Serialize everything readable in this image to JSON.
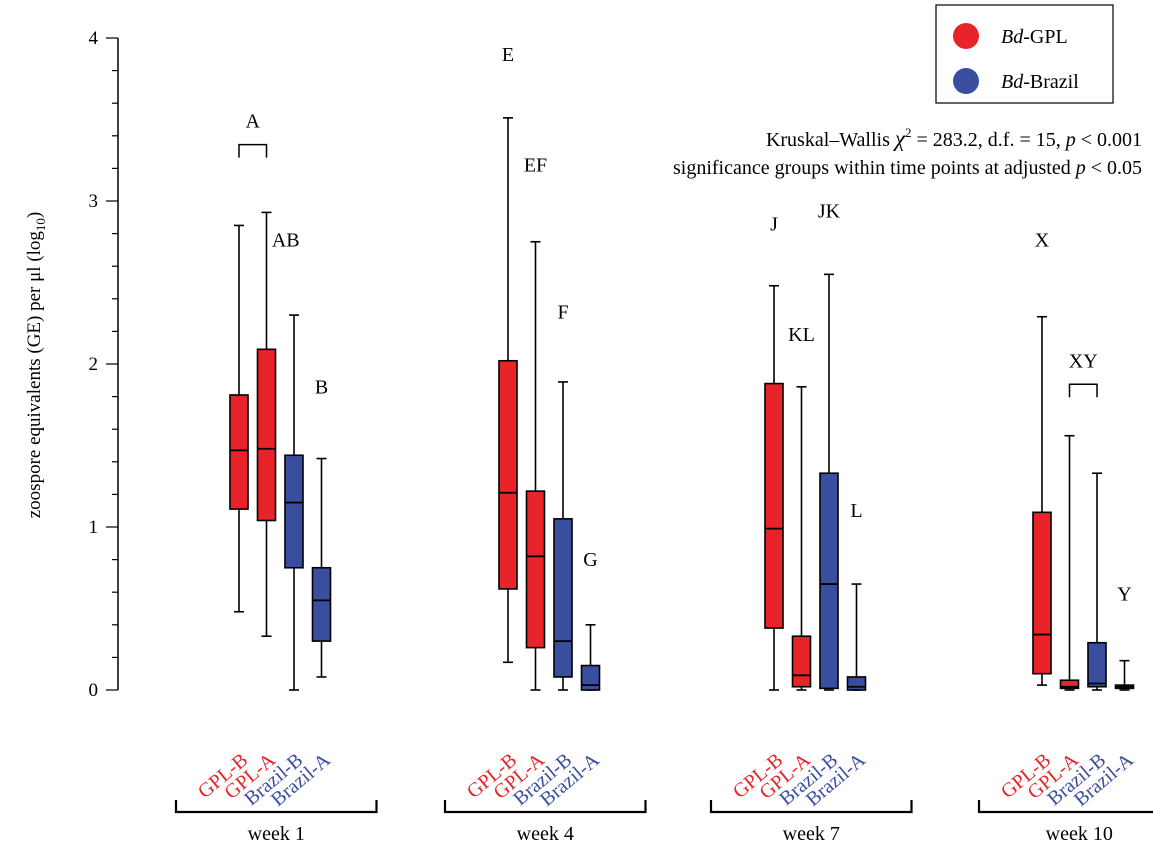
{
  "chart_data": {
    "type": "box",
    "ylabel": "zoospore equivalents (GE) per μl (log",
    "ylabel_subscript": "10",
    "ylabel_close": ")",
    "ylim": [
      0,
      4
    ],
    "yticks": [
      0,
      1,
      2,
      3,
      4
    ],
    "colors": {
      "Bd-GPL": "#e8242a",
      "Bd-Brazil": "#3a4ea0"
    },
    "legend": {
      "position": "top-right",
      "entries": [
        {
          "italic": "Bd",
          "text": "-GPL",
          "lineage": "Bd-GPL"
        },
        {
          "italic": "Bd",
          "text": "-Brazil",
          "lineage": "Bd-Brazil"
        }
      ]
    },
    "annotation": {
      "line1": {
        "pre": "Kruskal–Wallis ",
        "chi": "χ",
        "sup": "2",
        "mid": " = 283.2, d.f. = 15, ",
        "p": "p",
        "post": " < 0.001"
      },
      "line2": {
        "pre": "significance groups within time points at adjusted ",
        "p": "p",
        "post": " < 0.05"
      }
    },
    "groups": [
      {
        "label": "week 1",
        "boxes": [
          {
            "name": "GPL-B",
            "lineage": "Bd-GPL",
            "min": 0.48,
            "q1": 1.11,
            "median": 1.47,
            "q3": 1.81,
            "max": 2.85
          },
          {
            "name": "GPL-A",
            "lineage": "Bd-GPL",
            "min": 0.33,
            "q1": 1.04,
            "median": 1.48,
            "q3": 2.09,
            "max": 2.93
          },
          {
            "name": "Brazil-B",
            "lineage": "Bd-Brazil",
            "min": 0.0,
            "q1": 0.75,
            "median": 1.15,
            "q3": 1.44,
            "max": 2.3
          },
          {
            "name": "Brazil-A",
            "lineage": "Bd-Brazil",
            "min": 0.08,
            "q1": 0.3,
            "median": 0.55,
            "q3": 0.75,
            "max": 1.42
          }
        ],
        "letters": [
          {
            "text": "A",
            "box": 0.5,
            "y": 3.45,
            "bracket": true
          },
          {
            "text": "AB",
            "box": 1.7,
            "y": 2.72
          },
          {
            "text": "B",
            "box": 3.0,
            "y": 1.82
          }
        ]
      },
      {
        "label": "week 4",
        "boxes": [
          {
            "name": "GPL-B",
            "lineage": "Bd-GPL",
            "min": 0.17,
            "q1": 0.62,
            "median": 1.21,
            "q3": 2.02,
            "max": 3.51
          },
          {
            "name": "GPL-A",
            "lineage": "Bd-GPL",
            "min": 0.0,
            "q1": 0.26,
            "median": 0.82,
            "q3": 1.22,
            "max": 2.75
          },
          {
            "name": "Brazil-B",
            "lineage": "Bd-Brazil",
            "min": 0.0,
            "q1": 0.08,
            "median": 0.3,
            "q3": 1.05,
            "max": 1.89
          },
          {
            "name": "Brazil-A",
            "lineage": "Bd-Brazil",
            "min": 0.0,
            "q1": 0.0,
            "median": 0.03,
            "q3": 0.15,
            "max": 0.4
          }
        ],
        "letters": [
          {
            "text": "E",
            "box": 0.0,
            "y": 3.86
          },
          {
            "text": "EF",
            "box": 1.0,
            "y": 3.18
          },
          {
            "text": "F",
            "box": 2.0,
            "y": 2.28
          },
          {
            "text": "G",
            "box": 3.0,
            "y": 0.76
          }
        ]
      },
      {
        "label": "week 7",
        "boxes": [
          {
            "name": "GPL-B",
            "lineage": "Bd-GPL",
            "min": 0.0,
            "q1": 0.38,
            "median": 0.99,
            "q3": 1.88,
            "max": 2.48
          },
          {
            "name": "GPL-A",
            "lineage": "Bd-GPL",
            "min": 0.0,
            "q1": 0.02,
            "median": 0.09,
            "q3": 0.33,
            "max": 1.86
          },
          {
            "name": "Brazil-B",
            "lineage": "Bd-Brazil",
            "min": 0.0,
            "q1": 0.01,
            "median": 0.65,
            "q3": 1.33,
            "max": 2.55
          },
          {
            "name": "Brazil-A",
            "lineage": "Bd-Brazil",
            "min": 0.0,
            "q1": 0.0,
            "median": 0.02,
            "q3": 0.08,
            "max": 0.65
          }
        ],
        "letters": [
          {
            "text": "J",
            "box": 0.0,
            "y": 2.82
          },
          {
            "text": "KL",
            "box": 1.0,
            "y": 2.14
          },
          {
            "text": "JK",
            "box": 2.0,
            "y": 2.9
          },
          {
            "text": "L",
            "box": 3.0,
            "y": 1.06
          }
        ]
      },
      {
        "label": "week 10",
        "boxes": [
          {
            "name": "GPL-B",
            "lineage": "Bd-GPL",
            "min": 0.03,
            "q1": 0.1,
            "median": 0.34,
            "q3": 1.09,
            "max": 2.29
          },
          {
            "name": "GPL-A",
            "lineage": "Bd-GPL",
            "min": 0.0,
            "q1": 0.01,
            "median": 0.02,
            "q3": 0.06,
            "max": 1.56
          },
          {
            "name": "Brazil-B",
            "lineage": "Bd-Brazil",
            "min": 0.0,
            "q1": 0.02,
            "median": 0.04,
            "q3": 0.29,
            "max": 1.33
          },
          {
            "name": "Brazil-A",
            "lineage": "Bd-Brazil",
            "min": 0.0,
            "q1": 0.01,
            "median": 0.02,
            "q3": 0.03,
            "max": 0.18
          }
        ],
        "letters": [
          {
            "text": "X",
            "box": 0.0,
            "y": 2.72
          },
          {
            "text": "XY",
            "box": 1.5,
            "y": 1.98,
            "bracket": true
          },
          {
            "text": "Y",
            "box": 3.0,
            "y": 0.55
          }
        ]
      }
    ]
  }
}
